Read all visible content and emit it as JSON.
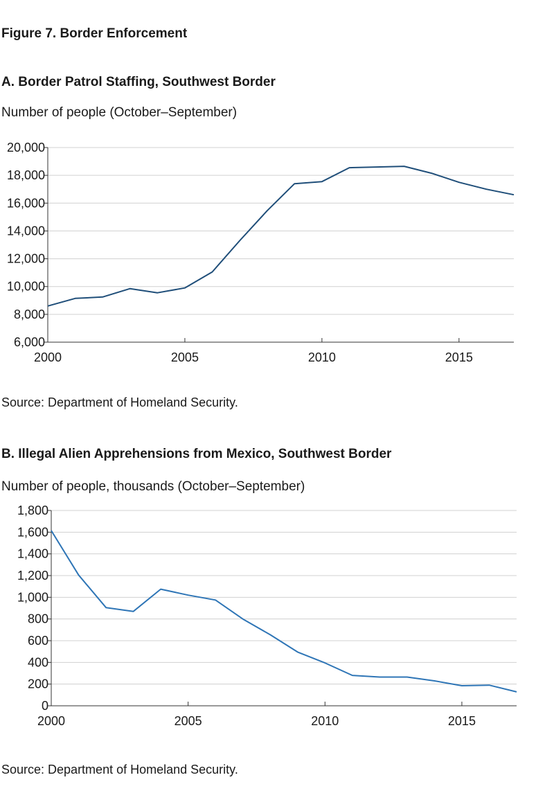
{
  "figure_title": "Figure 7. Border Enforcement",
  "colors": {
    "panel_a_line": "#1f4e79",
    "panel_b_line": "#2e75b6",
    "grid": "#d0d0d0",
    "axis": "#333333"
  },
  "chart_data": [
    {
      "type": "line",
      "title": "A. Border Patrol Staffing, Southwest Border",
      "ylabel": "Number of people (October–September)",
      "xlabel": "",
      "source": "Source: Department of Homeland Security.",
      "x": [
        2000,
        2001,
        2002,
        2003,
        2004,
        2005,
        2006,
        2007,
        2008,
        2009,
        2010,
        2011,
        2012,
        2013,
        2014,
        2015,
        2016,
        2017
      ],
      "series": [
        {
          "values": [
            8600,
            9150,
            9250,
            9850,
            9550,
            9900,
            11050,
            13300,
            15450,
            17400,
            17550,
            18550,
            18600,
            18650,
            18150,
            17500,
            17000,
            16600
          ]
        }
      ],
      "xlim": [
        2000,
        2017
      ],
      "ylim": [
        6000,
        20000
      ],
      "xticks": [
        "2000",
        "2005",
        "2010",
        "2015"
      ],
      "xtick_values": [
        2000,
        2005,
        2010,
        2015
      ],
      "yticks": [
        "6,000",
        "8,000",
        "10,000",
        "12,000",
        "14,000",
        "16,000",
        "18,000",
        "20,000"
      ],
      "ytick_values": [
        6000,
        8000,
        10000,
        12000,
        14000,
        16000,
        18000,
        20000
      ],
      "grid": true,
      "legend": "none"
    },
    {
      "type": "line",
      "title": "B. Illegal Alien Apprehensions from Mexico, Southwest Border",
      "ylabel": "Number of people, thousands (October–September)",
      "xlabel": "",
      "source": "Source: Department of Homeland Security.",
      "x": [
        2000,
        2001,
        2002,
        2003,
        2004,
        2005,
        2006,
        2007,
        2008,
        2009,
        2010,
        2011,
        2012,
        2013,
        2014,
        2015,
        2016,
        2017
      ],
      "series": [
        {
          "values": [
            1615,
            1205,
            905,
            870,
            1075,
            1020,
            975,
            800,
            655,
            495,
            395,
            280,
            265,
            265,
            230,
            185,
            190,
            128
          ]
        }
      ],
      "xlim": [
        2000,
        2017
      ],
      "ylim": [
        0,
        1800
      ],
      "xticks": [
        "2000",
        "2005",
        "2010",
        "2015"
      ],
      "xtick_values": [
        2000,
        2005,
        2010,
        2015
      ],
      "yticks": [
        "0",
        "200",
        "400",
        "600",
        "800",
        "1,000",
        "1,200",
        "1,400",
        "1,600",
        "1,800"
      ],
      "ytick_values": [
        0,
        200,
        400,
        600,
        800,
        1000,
        1200,
        1400,
        1600,
        1800
      ],
      "grid": true,
      "legend": "none"
    }
  ]
}
